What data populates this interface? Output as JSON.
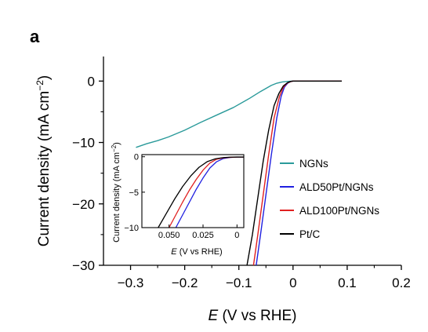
{
  "panel_label": "a",
  "chart_data": [
    {
      "type": "line",
      "xlabel_italic": "E",
      "xlabel_rest": " (V vs RHE)",
      "ylabel_main": "Current density (mA cm",
      "ylabel_sup": "−2",
      "ylabel_close": ")",
      "xlim": [
        -0.35,
        0.2
      ],
      "ylim": [
        -30,
        4
      ],
      "x_ticks": [
        -0.3,
        -0.2,
        -0.1,
        0,
        0.1,
        0.2
      ],
      "x_tick_labels": [
        "−0.3",
        "−0.2",
        "−0.1",
        "0",
        "0.1",
        "0.2"
      ],
      "y_ticks": [
        0,
        -10,
        -20,
        -30
      ],
      "y_tick_labels": [
        "0",
        "−10",
        "−20",
        "−30"
      ],
      "legend_position": "right",
      "series": [
        {
          "name": "NGNs",
          "color": "#2a9a9a",
          "x": [
            -0.29,
            -0.27,
            -0.25,
            -0.23,
            -0.2,
            -0.17,
            -0.14,
            -0.11,
            -0.08,
            -0.06,
            -0.04,
            -0.03,
            -0.02,
            -0.01,
            0.0,
            0.02,
            0.05,
            0.09
          ],
          "y": [
            -10.8,
            -10.2,
            -9.7,
            -9.1,
            -8.0,
            -6.7,
            -5.5,
            -4.3,
            -2.8,
            -1.7,
            -0.7,
            -0.35,
            -0.15,
            -0.05,
            0.0,
            0.0,
            0.0,
            0.0
          ]
        },
        {
          "name": "ALD50Pt/NGNs",
          "color": "#2020e0",
          "x": [
            -0.068,
            -0.06,
            -0.05,
            -0.04,
            -0.03,
            -0.022,
            -0.016,
            -0.01,
            -0.005,
            0.0,
            0.02,
            0.05,
            0.09
          ],
          "y": [
            -30,
            -25,
            -18.5,
            -12,
            -6,
            -2.5,
            -1.0,
            -0.35,
            -0.1,
            0.0,
            0.0,
            0.0,
            0.0
          ]
        },
        {
          "name": "ALD100Pt/NGNs",
          "color": "#e02020",
          "x": [
            -0.073,
            -0.065,
            -0.055,
            -0.045,
            -0.035,
            -0.025,
            -0.018,
            -0.011,
            -0.005,
            0.0,
            0.02,
            0.05,
            0.09
          ],
          "y": [
            -30,
            -25,
            -18.5,
            -12,
            -6,
            -2.5,
            -1.0,
            -0.35,
            -0.1,
            0.0,
            0.0,
            0.0,
            0.0
          ]
        },
        {
          "name": "Pt/C",
          "color": "#000000",
          "x": [
            -0.085,
            -0.075,
            -0.065,
            -0.055,
            -0.045,
            -0.035,
            -0.026,
            -0.018,
            -0.01,
            -0.004,
            0.0,
            0.02,
            0.05,
            0.09
          ],
          "y": [
            -30,
            -25,
            -19,
            -13,
            -8,
            -4,
            -2.0,
            -0.8,
            -0.25,
            -0.05,
            0.0,
            0.0,
            0.0,
            0.0
          ]
        }
      ]
    },
    {
      "type": "line",
      "inset": true,
      "xlabel_italic": "E",
      "xlabel_rest": " (V vs RHE)",
      "ylabel_main": "Current density (mA cm",
      "ylabel_sup": "−2",
      "ylabel_close": ")",
      "xlim": [
        0.07,
        -0.005
      ],
      "ylim": [
        -10,
        0.3
      ],
      "x_ticks": [
        0.05,
        0.025,
        0
      ],
      "x_tick_labels": [
        "0.050",
        "0.025",
        "0"
      ],
      "y_ticks": [
        0,
        -5,
        -10
      ],
      "y_tick_labels": [
        "0",
        "−5",
        "−10"
      ],
      "series": [
        {
          "name": "ALD50Pt/NGNs",
          "color": "#2020e0",
          "x": [
            0.045,
            0.04,
            0.035,
            0.03,
            0.025,
            0.02,
            0.015,
            0.01,
            0.005,
            0.0,
            -0.005
          ],
          "y": [
            -10,
            -8.2,
            -6.4,
            -4.6,
            -3.0,
            -1.6,
            -0.7,
            -0.25,
            -0.1,
            -0.05,
            -0.05
          ]
        },
        {
          "name": "ALD100Pt/NGNs",
          "color": "#e02020",
          "x": [
            0.05,
            0.045,
            0.04,
            0.035,
            0.03,
            0.025,
            0.02,
            0.015,
            0.01,
            0.005,
            0.0,
            -0.005
          ],
          "y": [
            -10,
            -8.2,
            -6.4,
            -4.7,
            -3.2,
            -1.9,
            -0.9,
            -0.35,
            -0.15,
            -0.08,
            -0.05,
            -0.05
          ]
        },
        {
          "name": "Pt/C",
          "color": "#000000",
          "x": [
            0.058,
            0.052,
            0.046,
            0.04,
            0.034,
            0.028,
            0.022,
            0.016,
            0.01,
            0.005,
            0.0,
            -0.005
          ],
          "y": [
            -10,
            -8.0,
            -6.0,
            -4.2,
            -2.7,
            -1.5,
            -0.7,
            -0.3,
            -0.12,
            -0.06,
            -0.04,
            -0.04
          ]
        }
      ]
    }
  ]
}
